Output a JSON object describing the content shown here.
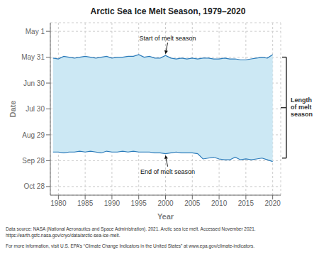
{
  "chart_data": {
    "type": "area",
    "title": "Arctic Sea Ice Melt Season, 1979–2020",
    "xlabel": "Year",
    "ylabel": "Date",
    "color": "#cce8f4",
    "x": [
      1979,
      1980,
      1981,
      1982,
      1983,
      1984,
      1985,
      1986,
      1987,
      1988,
      1989,
      1990,
      1991,
      1992,
      1993,
      1994,
      1995,
      1996,
      1997,
      1998,
      1999,
      2000,
      2001,
      2002,
      2003,
      2004,
      2005,
      2006,
      2007,
      2008,
      2009,
      2010,
      2011,
      2012,
      2013,
      2014,
      2015,
      2016,
      2017,
      2018,
      2019,
      2020
    ],
    "series": [
      {
        "color": "#2b7bba",
        "values": [
          152,
          153,
          150,
          151,
          152,
          151,
          150,
          151,
          152,
          151,
          150,
          152,
          151,
          151,
          150,
          150,
          148,
          151,
          150,
          152,
          152,
          149,
          152,
          153,
          152,
          153,
          152,
          153,
          152,
          152,
          153,
          153,
          152,
          153,
          153,
          154,
          154,
          153,
          152,
          151,
          152,
          148
        ]
      },
      {
        "color": "#2b7bba",
        "values": [
          261,
          261,
          262,
          261,
          261,
          260,
          261,
          260,
          261,
          262,
          260,
          261,
          261,
          260,
          261,
          260,
          261,
          261,
          261,
          262,
          262,
          263,
          262,
          261,
          262,
          262,
          262,
          263,
          269,
          268,
          267,
          269,
          270,
          270,
          267,
          270,
          269,
          270,
          269,
          268,
          270,
          272
        ]
      }
    ],
    "xlim": [
      1978.5,
      2021.5
    ],
    "xticks": [
      1980,
      1985,
      1990,
      1995,
      2000,
      2005,
      2010,
      2015,
      2020
    ],
    "ylim": [
      311,
      111
    ],
    "yticks": [
      {
        "value": 121,
        "label": "May 1"
      },
      {
        "value": 151,
        "label": "May 31"
      },
      {
        "value": 181,
        "label": "Jun 30"
      },
      {
        "value": 211,
        "label": "Jul 30"
      },
      {
        "value": 241,
        "label": "Aug 29"
      },
      {
        "value": 271,
        "label": "Sep 28"
      },
      {
        "value": 301,
        "label": "Oct 28"
      }
    ],
    "grid": true,
    "annotations": [
      {
        "text": "Start of melt season",
        "x": 2000,
        "y": 149
      },
      {
        "text": "End of melt season",
        "x": 2000,
        "y": 263
      },
      {
        "text": "Length\nof melt\nseason",
        "y_range": [
          151,
          268
        ]
      }
    ],
    "footnotes": [
      "Data source: NASA (National Aeronautics and Space Administration). 2021. Arctic sea ice melt. Accessed November 2021.",
      "https://earth.gsfc.nasa.gov/cryo/data/arctic-sea-ice-melt.",
      "For more information, visit U.S. EPA’s “Climate Change Indicators in the United States” at www.epa.gov/climate-indicators."
    ]
  }
}
